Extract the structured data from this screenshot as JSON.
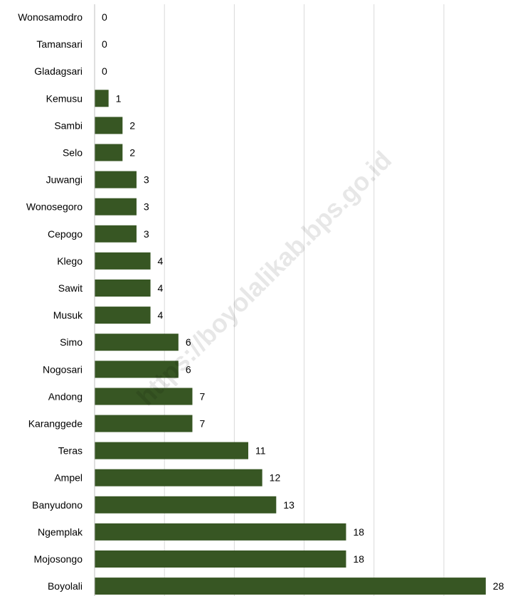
{
  "watermark": "https://boyolalikab.bps.go.id",
  "chart_data": {
    "type": "bar",
    "orientation": "horizontal",
    "title": "",
    "xlabel": "",
    "ylabel": "",
    "xlim": [
      0,
      28
    ],
    "grid": true,
    "bar_color": "#375623",
    "categories": [
      "Wonosamodro",
      "Tamansari",
      "Gladagsari",
      "Kemusu",
      "Sambi",
      "Selo",
      "Juwangi",
      "Wonosegoro",
      "Cepogo",
      "Klego",
      "Sawit",
      "Musuk",
      "Simo",
      "Nogosari",
      "Andong",
      "Karanggede",
      "Teras",
      "Ampel",
      "Banyudono",
      "Ngemplak",
      "Mojosongo",
      "Boyolali"
    ],
    "values": [
      0,
      0,
      0,
      1,
      2,
      2,
      3,
      3,
      3,
      4,
      4,
      4,
      6,
      6,
      7,
      7,
      11,
      12,
      13,
      18,
      18,
      28
    ]
  }
}
